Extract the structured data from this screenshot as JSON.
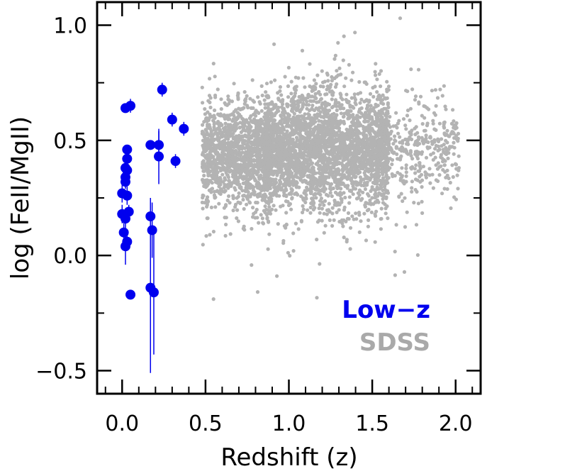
{
  "chart_data": {
    "type": "scatter",
    "xlabel": "Redshift (z)",
    "ylabel": "log (FeII/MgII)",
    "xlim": [
      -0.15,
      2.15
    ],
    "ylim": [
      -0.6,
      1.1
    ],
    "x_ticks": [
      0.0,
      0.5,
      1.0,
      1.5,
      2.0
    ],
    "x_tick_labels": [
      "0.0",
      "0.5",
      "1.0",
      "1.5",
      "2.0"
    ],
    "y_ticks": [
      -0.5,
      0.0,
      0.5,
      1.0
    ],
    "y_tick_labels": [
      "−0.5",
      "0.0",
      "0.5",
      "1.0"
    ],
    "grid": false,
    "legend": {
      "placement": "bottom-right",
      "entries": [
        {
          "label": "Low−z",
          "color": "#0000ee"
        },
        {
          "label": "SDSS",
          "color": "#a9a9a9"
        }
      ]
    },
    "series": [
      {
        "name": "Low−z",
        "color": "#0000ee",
        "points": [
          {
            "x": 0.02,
            "y": 0.64,
            "err": 0.02
          },
          {
            "x": 0.05,
            "y": 0.65,
            "err": 0.03
          },
          {
            "x": 0.03,
            "y": 0.46,
            "err": 0.02
          },
          {
            "x": 0.03,
            "y": 0.42,
            "err": 0.03
          },
          {
            "x": 0.02,
            "y": 0.38,
            "err": 0.03
          },
          {
            "x": 0.03,
            "y": 0.37,
            "err": 0.03
          },
          {
            "x": 0.02,
            "y": 0.34,
            "err": 0.03
          },
          {
            "x": 0.02,
            "y": 0.32,
            "err": 0.03
          },
          {
            "x": 0.0,
            "y": 0.27,
            "err": 0.04
          },
          {
            "x": 0.03,
            "y": 0.26,
            "err": 0.04
          },
          {
            "x": 0.0,
            "y": 0.18,
            "err": 0.04
          },
          {
            "x": 0.04,
            "y": 0.19,
            "err": 0.03
          },
          {
            "x": 0.02,
            "y": 0.16,
            "err": 0.04
          },
          {
            "x": 0.01,
            "y": 0.1,
            "err": 0.04
          },
          {
            "x": 0.03,
            "y": 0.06,
            "err": 0.04
          },
          {
            "x": 0.02,
            "y": 0.04,
            "err": 0.08
          },
          {
            "x": 0.05,
            "y": -0.17,
            "err": 0.02
          },
          {
            "x": 0.17,
            "y": 0.48,
            "err": 0.02
          },
          {
            "x": 0.22,
            "y": 0.48,
            "err": 0.06
          },
          {
            "x": 0.22,
            "y": 0.43,
            "err": 0.12
          },
          {
            "x": 0.24,
            "y": 0.72,
            "err": 0.03
          },
          {
            "x": 0.3,
            "y": 0.59,
            "err": 0.03
          },
          {
            "x": 0.32,
            "y": 0.41,
            "err": 0.03
          },
          {
            "x": 0.37,
            "y": 0.55,
            "err": 0.03
          },
          {
            "x": 0.17,
            "y": 0.17,
            "err": 0.08
          },
          {
            "x": 0.18,
            "y": 0.11,
            "err": 0.12
          },
          {
            "x": 0.17,
            "y": -0.14,
            "err": 0.37
          },
          {
            "x": 0.19,
            "y": -0.16,
            "err": 0.27
          }
        ]
      },
      {
        "name": "SDSS",
        "color": "#b3b3b3",
        "distribution": {
          "components": [
            {
              "n": 1300,
              "x_range": [
                0.48,
                0.9
              ],
              "y_mean": 0.43,
              "y_sd": 0.11
            },
            {
              "n": 2900,
              "x_range": [
                0.85,
                1.6
              ],
              "y_mean": 0.46,
              "y_sd": 0.13
            },
            {
              "n": 350,
              "x_range": [
                1.55,
                2.02
              ],
              "y_mean": 0.46,
              "y_sd": 0.1
            },
            {
              "n": 220,
              "x_range": [
                0.48,
                1.8
              ],
              "y_mean": 0.4,
              "y_sd": 0.23
            }
          ],
          "approx_x_range": [
            0.45,
            2.05
          ],
          "approx_y_range": [
            -0.35,
            1.08
          ]
        }
      }
    ]
  }
}
